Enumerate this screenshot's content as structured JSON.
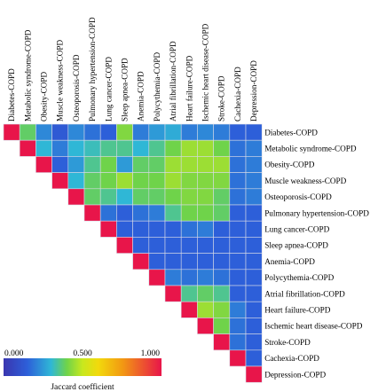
{
  "chart_data": {
    "type": "heatmap",
    "title": "",
    "layout": "upper-triangle",
    "labels": [
      "Diabetes-COPD",
      "Metabolic syndrome-COPD",
      "Obesity-COPD",
      "Muscle weakness-COPD",
      "Osteoporosis-COPD",
      "Pulmonary hypertension-COPD",
      "Lung cancer-COPD",
      "Sleep apnea-COPD",
      "Anemia-COPD",
      "Polycythemia-COPD",
      "Atrial fibrillation-COPD",
      "Heart failure-COPD",
      "Ischemic heart disease-COPD",
      "Stroke-COPD",
      "Cachexia-COPD",
      "Depression-COPD"
    ],
    "values": [
      [
        1.0,
        0.38,
        0.22,
        0.13,
        0.22,
        0.18,
        0.15,
        0.42,
        0.2,
        0.25,
        0.28,
        0.2,
        0.22,
        0.2,
        0.15,
        0.15
      ],
      [
        null,
        1.0,
        0.3,
        0.2,
        0.3,
        0.32,
        0.35,
        0.35,
        0.3,
        0.35,
        0.4,
        0.45,
        0.45,
        0.4,
        0.18,
        0.2
      ],
      [
        null,
        null,
        1.0,
        0.15,
        0.25,
        0.35,
        0.4,
        0.25,
        0.38,
        0.38,
        0.45,
        0.45,
        0.45,
        0.45,
        0.18,
        0.2
      ],
      [
        null,
        null,
        null,
        1.0,
        0.3,
        0.38,
        0.4,
        0.45,
        0.4,
        0.4,
        0.45,
        0.42,
        0.42,
        0.42,
        0.18,
        0.2
      ],
      [
        null,
        null,
        null,
        null,
        1.0,
        0.38,
        0.35,
        0.3,
        0.38,
        0.38,
        0.4,
        0.42,
        0.42,
        0.38,
        0.18,
        0.2
      ],
      [
        null,
        null,
        null,
        null,
        null,
        1.0,
        0.18,
        0.15,
        0.18,
        0.2,
        0.35,
        0.4,
        0.4,
        0.38,
        0.15,
        0.15
      ],
      [
        null,
        null,
        null,
        null,
        null,
        null,
        1.0,
        0.15,
        0.15,
        0.15,
        0.15,
        0.18,
        0.2,
        0.15,
        0.15,
        0.15
      ],
      [
        null,
        null,
        null,
        null,
        null,
        null,
        null,
        1.0,
        0.15,
        0.15,
        0.15,
        0.15,
        0.15,
        0.15,
        0.15,
        0.15
      ],
      [
        null,
        null,
        null,
        null,
        null,
        null,
        null,
        null,
        1.0,
        0.15,
        0.15,
        0.15,
        0.15,
        0.15,
        0.15,
        0.15
      ],
      [
        null,
        null,
        null,
        null,
        null,
        null,
        null,
        null,
        null,
        1.0,
        0.2,
        0.18,
        0.2,
        0.18,
        0.15,
        0.15
      ],
      [
        null,
        null,
        null,
        null,
        null,
        null,
        null,
        null,
        null,
        null,
        1.0,
        0.35,
        0.38,
        0.35,
        0.15,
        0.15
      ],
      [
        null,
        null,
        null,
        null,
        null,
        null,
        null,
        null,
        null,
        null,
        null,
        1.0,
        0.45,
        0.42,
        0.2,
        0.15
      ],
      [
        null,
        null,
        null,
        null,
        null,
        null,
        null,
        null,
        null,
        null,
        null,
        null,
        1.0,
        0.4,
        0.18,
        0.15
      ],
      [
        null,
        null,
        null,
        null,
        null,
        null,
        null,
        null,
        null,
        null,
        null,
        null,
        null,
        1.0,
        0.18,
        0.15
      ],
      [
        null,
        null,
        null,
        null,
        null,
        null,
        null,
        null,
        null,
        null,
        null,
        null,
        null,
        null,
        1.0,
        0.15
      ],
      [
        null,
        null,
        null,
        null,
        null,
        null,
        null,
        null,
        null,
        null,
        null,
        null,
        null,
        null,
        null,
        1.0
      ]
    ],
    "colorscale": {
      "min": 0.0,
      "max": 1.0,
      "stops": [
        {
          "value": 0.0,
          "color": "#3a36b0"
        },
        {
          "value": 0.15,
          "color": "#2d5fd9"
        },
        {
          "value": 0.3,
          "color": "#2fb7d6"
        },
        {
          "value": 0.4,
          "color": "#6fd34a"
        },
        {
          "value": 0.5,
          "color": "#c8e81e"
        },
        {
          "value": 0.6,
          "color": "#f2d90c"
        },
        {
          "value": 0.75,
          "color": "#f29a12"
        },
        {
          "value": 1.0,
          "color": "#e8154a"
        }
      ]
    },
    "legend": {
      "title": "Jaccard coefficient",
      "ticks": [
        "0.000",
        "0.500",
        "1.000"
      ],
      "tick_values": [
        0.0,
        0.5,
        1.0
      ],
      "placement": "bottom-left"
    }
  }
}
